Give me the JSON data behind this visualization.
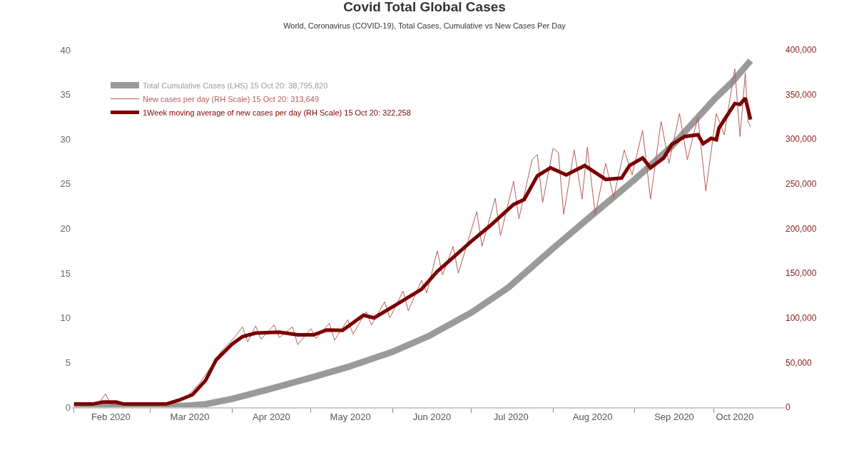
{
  "chart_data": {
    "type": "line",
    "title": "Covid Total Global Cases",
    "subtitle": "World, Coronavirus (COVID-19), Total Cases, Cumulative vs New Cases Per Day",
    "series": [
      {
        "name": "Total Cumulative Cases (LHS) 15 Oct 20: 38,795,820",
        "color": "#9a9a9a",
        "axis": "y",
        "x": [
          "2020-02-01",
          "2020-02-15",
          "2020-03-01",
          "2020-03-10",
          "2020-03-15",
          "2020-03-22",
          "2020-04-01",
          "2020-04-15",
          "2020-05-01",
          "2020-05-15",
          "2020-06-01",
          "2020-06-15",
          "2020-07-01",
          "2020-07-15",
          "2020-08-01",
          "2020-08-15",
          "2020-09-01",
          "2020-09-15",
          "2020-10-01",
          "2020-10-08",
          "2020-10-15"
        ],
        "values": [
          0.01,
          0.07,
          0.09,
          0.12,
          0.17,
          0.34,
          0.93,
          2.0,
          3.3,
          4.5,
          6.2,
          8.0,
          10.6,
          13.4,
          17.8,
          21.3,
          25.5,
          29.2,
          34.4,
          36.4,
          38.8
        ]
      },
      {
        "name": "New cases per day (RH Scale) 15 Oct 20: 313,649",
        "color": "#b85a5a",
        "axis": "y2",
        "x": [
          "2020-02-01",
          "2020-02-10",
          "2020-02-13",
          "2020-02-15",
          "2020-03-01",
          "2020-03-10",
          "2020-03-15",
          "2020-03-20",
          "2020-03-24",
          "2020-03-28",
          "2020-04-01",
          "2020-04-03",
          "2020-04-05",
          "2020-04-07",
          "2020-04-10",
          "2020-04-12",
          "2020-04-17",
          "2020-04-19",
          "2020-04-24",
          "2020-04-26",
          "2020-05-01",
          "2020-05-03",
          "2020-05-08",
          "2020-05-10",
          "2020-05-15",
          "2020-05-17",
          "2020-05-22",
          "2020-05-24",
          "2020-05-29",
          "2020-05-31",
          "2020-06-05",
          "2020-06-07",
          "2020-06-12",
          "2020-06-14",
          "2020-06-18",
          "2020-06-20",
          "2020-06-24",
          "2020-06-26",
          "2020-07-03",
          "2020-07-05",
          "2020-07-10",
          "2020-07-12",
          "2020-07-17",
          "2020-07-19",
          "2020-07-24",
          "2020-07-26",
          "2020-07-28",
          "2020-08-01",
          "2020-08-03",
          "2020-08-05",
          "2020-08-09",
          "2020-08-12",
          "2020-08-14",
          "2020-08-17",
          "2020-08-21",
          "2020-08-24",
          "2020-08-28",
          "2020-08-31",
          "2020-09-04",
          "2020-09-07",
          "2020-09-11",
          "2020-09-14",
          "2020-09-18",
          "2020-09-21",
          "2020-09-25",
          "2020-09-28",
          "2020-10-02",
          "2020-10-05",
          "2020-10-09",
          "2020-10-11",
          "2020-10-13",
          "2020-10-14",
          "2020-10-15"
        ],
        "values": [
          2000,
          3000,
          15000,
          3000,
          3000,
          5000,
          12000,
          28000,
          45000,
          63000,
          75000,
          82000,
          90000,
          73000,
          91000,
          76000,
          92000,
          78000,
          90000,
          70000,
          88000,
          77000,
          94000,
          75000,
          98000,
          82000,
          107000,
          92000,
          118000,
          100000,
          130000,
          108000,
          142000,
          128000,
          175000,
          148000,
          180000,
          150000,
          219000,
          180000,
          234000,
          192000,
          253000,
          211000,
          277000,
          283000,
          229000,
          290000,
          285000,
          216000,
          288000,
          233000,
          291000,
          216000,
          273000,
          235000,
          288000,
          260000,
          310000,
          233000,
          320000,
          273000,
          329000,
          277000,
          325000,
          242000,
          329000,
          305000,
          379000,
          303000,
          374000,
          320000,
          314000
        ]
      },
      {
        "name": "1Week moving average of new cases per day (RH Scale) 15 Oct 20: 322,258",
        "color": "#7a0000",
        "axis": "y2",
        "x": [
          "2020-02-01",
          "2020-02-08",
          "2020-02-12",
          "2020-02-17",
          "2020-02-20",
          "2020-03-07",
          "2020-03-12",
          "2020-03-17",
          "2020-03-22",
          "2020-03-26",
          "2020-04-01",
          "2020-04-05",
          "2020-04-10",
          "2020-04-19",
          "2020-04-26",
          "2020-05-02",
          "2020-05-07",
          "2020-05-13",
          "2020-05-21",
          "2020-05-25",
          "2020-06-02",
          "2020-06-12",
          "2020-06-18",
          "2020-06-23",
          "2020-07-01",
          "2020-07-08",
          "2020-07-17",
          "2020-07-21",
          "2020-07-26",
          "2020-07-31",
          "2020-08-06",
          "2020-08-13",
          "2020-08-21",
          "2020-08-27",
          "2020-08-30",
          "2020-09-04",
          "2020-09-07",
          "2020-09-12",
          "2020-09-15",
          "2020-09-20",
          "2020-09-25",
          "2020-09-27",
          "2020-09-30",
          "2020-10-02",
          "2020-10-03",
          "2020-10-09",
          "2020-10-11",
          "2020-10-13",
          "2020-10-15"
        ],
        "values": [
          3500,
          3500,
          5700,
          5700,
          3500,
          3500,
          8000,
          14000,
          30000,
          53000,
          70500,
          79000,
          83000,
          84000,
          81000,
          81000,
          86500,
          86000,
          103000,
          100000,
          114000,
          132000,
          152000,
          165000,
          186000,
          203000,
          227000,
          232500,
          259000,
          268000,
          260000,
          270500,
          255000,
          256500,
          270500,
          279000,
          268000,
          279000,
          294000,
          303000,
          305000,
          295000,
          301000,
          299500,
          312500,
          340000,
          339000,
          346000,
          322000
        ]
      }
    ],
    "xlim": [
      "2020-01-31",
      "2020-10-28"
    ],
    "xticks": [
      {
        "value": "2020-02-01",
        "label": null
      },
      {
        "value": "2020-02-15",
        "label": "Feb 2020"
      },
      {
        "value": "2020-03-01",
        "label": null
      },
      {
        "value": "2020-03-16",
        "label": "Mar 2020"
      },
      {
        "value": "2020-04-01",
        "label": null
      },
      {
        "value": "2020-04-16",
        "label": "Apr 2020"
      },
      {
        "value": "2020-05-01",
        "label": null
      },
      {
        "value": "2020-05-16",
        "label": "May 2020"
      },
      {
        "value": "2020-06-01",
        "label": null
      },
      {
        "value": "2020-06-16",
        "label": "Jun 2020"
      },
      {
        "value": "2020-07-01",
        "label": null
      },
      {
        "value": "2020-07-16",
        "label": "Jul 2020"
      },
      {
        "value": "2020-08-01",
        "label": null
      },
      {
        "value": "2020-08-16",
        "label": "Aug 2020"
      },
      {
        "value": "2020-09-01",
        "label": null
      },
      {
        "value": "2020-09-16",
        "label": "Sep 2020"
      },
      {
        "value": "2020-10-01",
        "label": null
      },
      {
        "value": "2020-10-09",
        "label": "Oct 2020"
      }
    ],
    "ylim": [
      0,
      40
    ],
    "yticks": [
      0,
      5,
      10,
      15,
      20,
      25,
      30,
      35,
      40
    ],
    "y2lim": [
      0,
      400000
    ],
    "y2ticks": [
      0,
      {
        "value": 50000,
        "label": "50,000"
      },
      {
        "value": 100000,
        "label": "100,000"
      },
      {
        "value": 150000,
        "label": "150,000"
      },
      {
        "value": 200000,
        "label": "200,000"
      },
      {
        "value": 250000,
        "label": "250,000"
      },
      {
        "value": 300000,
        "label": "300,000"
      },
      {
        "value": 350000,
        "label": "350,000"
      },
      {
        "value": 400000,
        "label": "400,000"
      }
    ],
    "legend": "top left",
    "marker": "none",
    "line_style": "solid"
  }
}
